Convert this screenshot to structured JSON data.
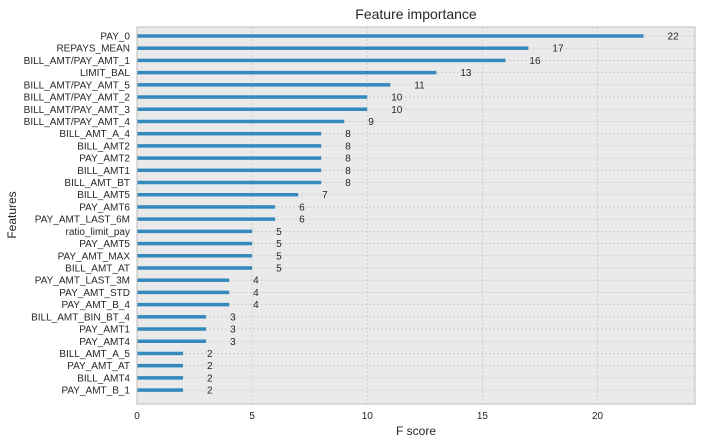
{
  "chart_data": {
    "type": "bar",
    "orientation": "horizontal",
    "title": "Feature importance",
    "xlabel": "F score",
    "ylabel": "Features",
    "xlim": [
      0,
      24.2
    ],
    "xticks": [
      0,
      5,
      10,
      15,
      20
    ],
    "grid": true,
    "bar_color": "#348abd",
    "background_color": "#eaeaea",
    "categories": [
      "PAY_0",
      "REPAYS_MEAN",
      "BILL_AMT/PAY_AMT_1",
      "LIMIT_BAL",
      "BILL_AMT/PAY_AMT_5",
      "BILL_AMT/PAY_AMT_2",
      "BILL_AMT/PAY_AMT_3",
      "BILL_AMT/PAY_AMT_4",
      "BILL_AMT_A_4",
      "BILL_AMT2",
      "PAY_AMT2",
      "BILL_AMT1",
      "BILL_AMT_BT",
      "BILL_AMT5",
      "PAY_AMT6",
      "PAY_AMT_LAST_6M",
      "ratio_limit_pay",
      "PAY_AMT5",
      "PAY_AMT_MAX",
      "BILL_AMT_AT",
      "PAY_AMT_LAST_3M",
      "PAY_AMT_STD",
      "PAY_AMT_B_4",
      "BILL_AMT_BIN_BT_4",
      "PAY_AMT1",
      "PAY_AMT4",
      "BILL_AMT_A_5",
      "PAY_AMT_AT",
      "BILL_AMT4",
      "PAY_AMT_B_1"
    ],
    "values": [
      22,
      17,
      16,
      13,
      11,
      10,
      10,
      9,
      8,
      8,
      8,
      8,
      8,
      7,
      6,
      6,
      5,
      5,
      5,
      5,
      4,
      4,
      4,
      3,
      3,
      3,
      2,
      2,
      2,
      2
    ]
  }
}
